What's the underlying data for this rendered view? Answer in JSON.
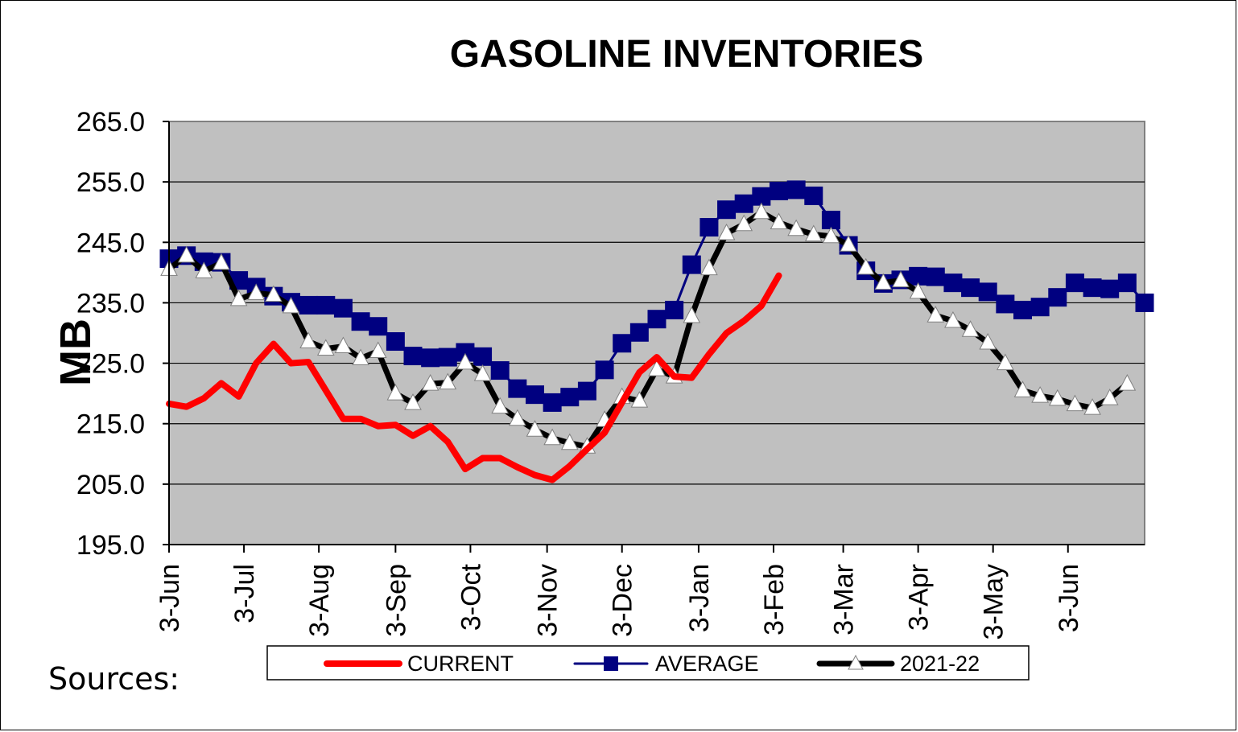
{
  "chart_data": {
    "type": "line",
    "title": "GASOLINE INVENTORIES",
    "ylabel": "MB",
    "xlabel": "",
    "ylim": [
      195.0,
      265.0
    ],
    "yticks": [
      "195.0",
      "205.0",
      "215.0",
      "225.0",
      "235.0",
      "245.0",
      "255.0",
      "265.0"
    ],
    "ytick_values": [
      195,
      205,
      215,
      225,
      235,
      245,
      255,
      265
    ],
    "xlim": [
      0,
      56
    ],
    "xticks": [
      {
        "label": "3-Jun",
        "x": 0
      },
      {
        "label": "3-Jul",
        "x": 4.3
      },
      {
        "label": "3-Aug",
        "x": 8.6
      },
      {
        "label": "3-Sep",
        "x": 13
      },
      {
        "label": "3-Oct",
        "x": 17.3
      },
      {
        "label": "3-Nov",
        "x": 21.7
      },
      {
        "label": "3-Dec",
        "x": 26
      },
      {
        "label": "3-Jan",
        "x": 30.4
      },
      {
        "label": "3-Feb",
        "x": 34.7
      },
      {
        "label": "3-Mar",
        "x": 38.7
      },
      {
        "label": "3-Apr",
        "x": 43
      },
      {
        "label": "3-May",
        "x": 47.3
      },
      {
        "label": "3-Jun",
        "x": 51.6
      }
    ],
    "grid": true,
    "legend_position": "bottom",
    "series": [
      {
        "name": "CURRENT",
        "color": "#ff0000",
        "marker": "none",
        "x": [
          0,
          1,
          2,
          3,
          4,
          5,
          6,
          7,
          8,
          9,
          10,
          11,
          12,
          13,
          14,
          15,
          16,
          17,
          18,
          19,
          20,
          21,
          22,
          23,
          24,
          25,
          26,
          27,
          28,
          29,
          30,
          31,
          32,
          33,
          34,
          35
        ],
        "values": [
          218.3,
          217.8,
          219.2,
          221.7,
          219.5,
          225.0,
          228.2,
          225.0,
          225.2,
          220.5,
          215.8,
          215.8,
          214.6,
          214.8,
          213.0,
          214.6,
          212.0,
          207.5,
          209.3,
          209.3,
          207.8,
          206.5,
          205.7,
          208.0,
          210.8,
          213.5,
          218.5,
          223.5,
          226.0,
          222.8,
          222.6,
          226.5,
          230.0,
          232.0,
          234.5,
          239.5
        ]
      },
      {
        "name": "AVERAGE",
        "color": "#000080",
        "marker": "square",
        "x": [
          0,
          1,
          2,
          3,
          4,
          5,
          6,
          7,
          8,
          9,
          10,
          11,
          12,
          13,
          14,
          15,
          16,
          17,
          18,
          19,
          20,
          21,
          22,
          23,
          24,
          25,
          26,
          27,
          28,
          29,
          30,
          31,
          32,
          33,
          34,
          35,
          36,
          37,
          38,
          39,
          40,
          41,
          42,
          43,
          44,
          45,
          46,
          47,
          48,
          49,
          50,
          51,
          52,
          53,
          54,
          55,
          56
        ],
        "values": [
          242.3,
          242.8,
          241.8,
          241.7,
          238.7,
          237.6,
          236.1,
          235.1,
          234.6,
          234.6,
          234.1,
          231.9,
          231.1,
          228.6,
          226.2,
          225.9,
          226.0,
          226.8,
          226.1,
          223.8,
          220.8,
          219.8,
          218.5,
          219.4,
          220.4,
          223.9,
          228.3,
          230.1,
          232.3,
          233.8,
          241.3,
          247.5,
          250.4,
          251.4,
          252.6,
          253.5,
          253.7,
          252.7,
          248.7,
          244.5,
          240.3,
          238.2,
          238.8,
          239.4,
          239.3,
          238.3,
          237.5,
          236.8,
          234.8,
          233.8,
          234.3,
          235.9,
          238.3,
          237.5,
          237.3,
          238.3,
          235.0
        ]
      },
      {
        "name": "2021-22",
        "color": "#000000",
        "marker": "triangle",
        "x": [
          0,
          1,
          2,
          3,
          4,
          5,
          6,
          7,
          8,
          9,
          10,
          11,
          12,
          13,
          14,
          15,
          16,
          17,
          18,
          19,
          20,
          21,
          22,
          23,
          24,
          25,
          26,
          27,
          28,
          29,
          30,
          31,
          32,
          33,
          34,
          35,
          36,
          37,
          38,
          39,
          40,
          41,
          42,
          43,
          44,
          45,
          46,
          47,
          48,
          49,
          50,
          51,
          52,
          53,
          54,
          55
        ],
        "values": [
          240.6,
          242.8,
          240.2,
          241.6,
          235.6,
          236.6,
          236.3,
          234.4,
          228.6,
          227.4,
          227.8,
          225.8,
          227.0,
          220.0,
          218.4,
          221.6,
          221.8,
          225.1,
          223.2,
          217.8,
          215.8,
          214.0,
          212.6,
          211.8,
          211.2,
          215.6,
          219.4,
          218.8,
          224.0,
          222.8,
          232.8,
          240.7,
          246.5,
          248.0,
          250.0,
          248.3,
          247.2,
          246.3,
          246.0,
          244.6,
          240.8,
          238.3,
          238.7,
          236.8,
          232.9,
          232.0,
          230.5,
          228.4,
          225.0,
          220.5,
          219.6,
          219.1,
          218.2,
          217.6,
          219.2,
          221.6
        ]
      }
    ]
  },
  "sources_label": "Sources:"
}
